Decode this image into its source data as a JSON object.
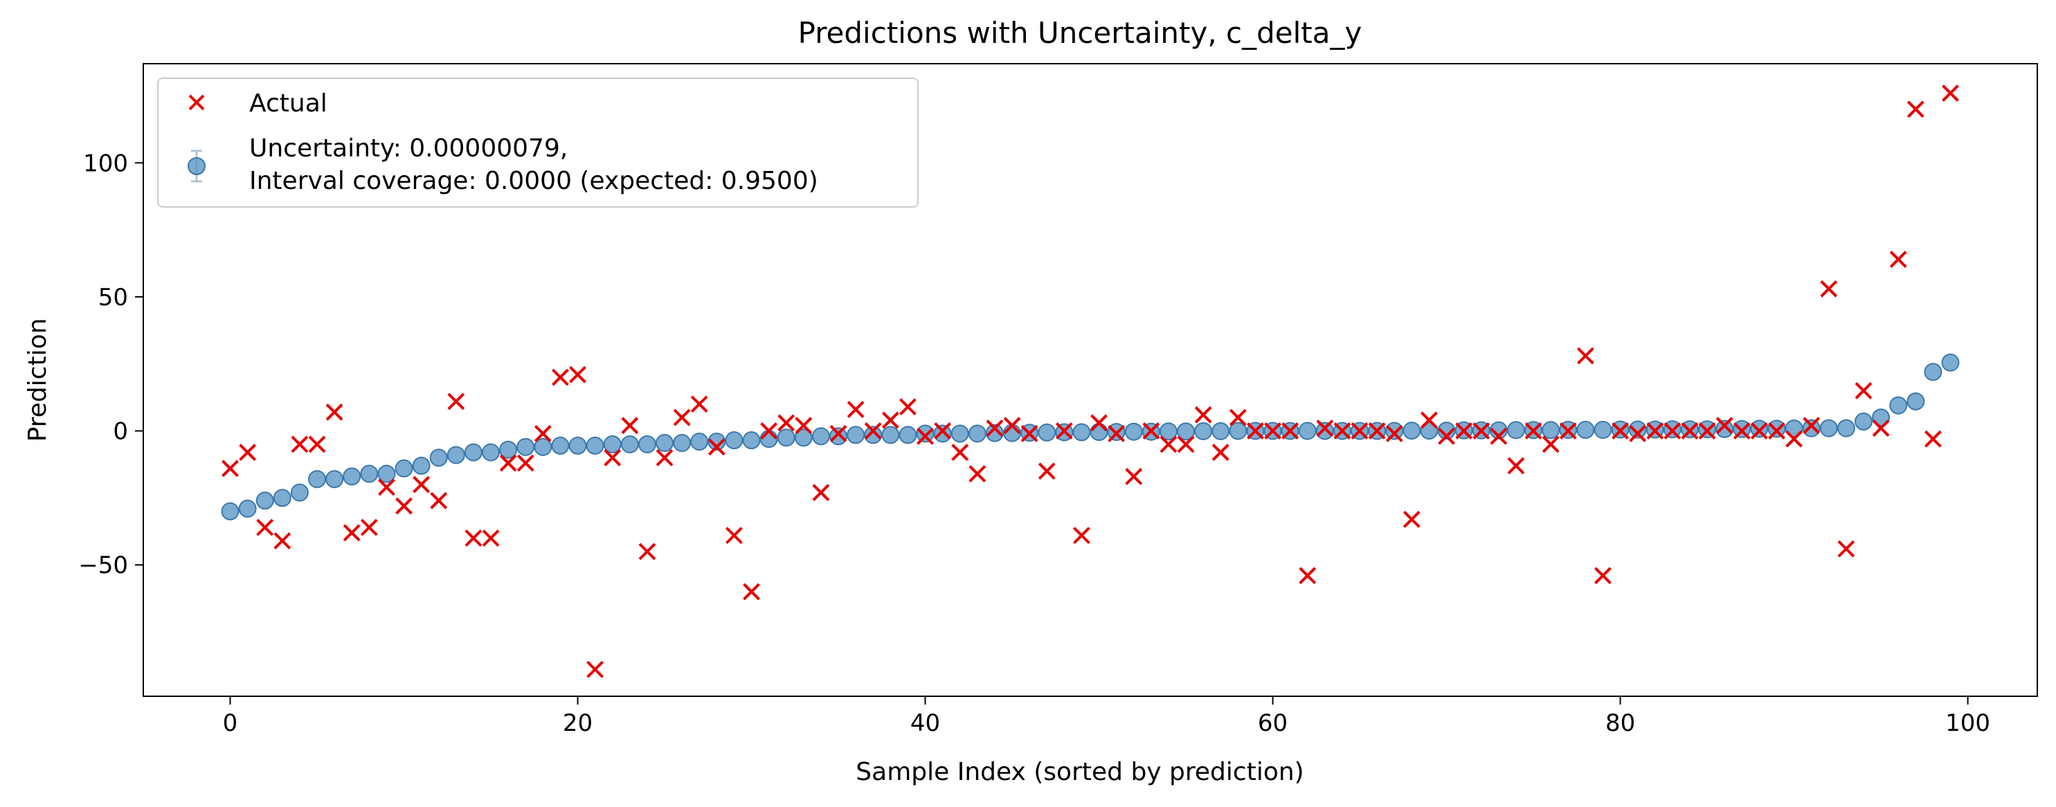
{
  "chart_data": {
    "type": "scatter",
    "title": "Predictions with Uncertainty, c_delta_y",
    "xlabel": "Sample Index (sorted by prediction)",
    "ylabel": "Prediction",
    "xlim": [
      -5,
      104
    ],
    "ylim": [
      -99,
      137
    ],
    "xticks": [
      0,
      20,
      40,
      60,
      80,
      100
    ],
    "yticks": [
      -50,
      0,
      50,
      100
    ],
    "grid": false,
    "legend_position": "top-left",
    "legend": {
      "actual_label": "Actual",
      "prediction_label_line1": "Uncertainty: 0.00000079,",
      "prediction_label_line2": "Interval coverage: 0.0000 (expected: 0.9500)"
    },
    "colors": {
      "actual": "#e60000",
      "prediction": "#5b97c6",
      "prediction_edge": "#3c78ab"
    },
    "series": [
      {
        "name": "Actual",
        "marker": "x",
        "x": [
          0,
          1,
          2,
          3,
          4,
          5,
          6,
          7,
          8,
          9,
          10,
          11,
          12,
          13,
          14,
          15,
          16,
          17,
          18,
          19,
          20,
          21,
          22,
          23,
          24,
          25,
          26,
          27,
          28,
          29,
          30,
          31,
          32,
          33,
          34,
          35,
          36,
          37,
          38,
          39,
          40,
          41,
          42,
          43,
          44,
          45,
          46,
          47,
          48,
          49,
          50,
          51,
          52,
          53,
          54,
          55,
          56,
          57,
          58,
          59,
          60,
          61,
          62,
          63,
          64,
          65,
          66,
          67,
          68,
          69,
          70,
          71,
          72,
          73,
          74,
          75,
          76,
          77,
          78,
          79,
          80,
          81,
          82,
          83,
          84,
          85,
          86,
          87,
          88,
          89,
          90,
          91,
          92,
          93,
          94,
          95,
          96,
          97,
          98,
          99
        ],
        "y": [
          -14,
          -8,
          -36,
          -41,
          -5,
          -5,
          7,
          -38,
          -36,
          -21,
          -28,
          -20,
          -26,
          11,
          -40,
          -40,
          -12,
          -12,
          -1,
          20,
          21,
          -89,
          -10,
          2,
          -45,
          -10,
          5,
          10,
          -6,
          -39,
          -60,
          0,
          3,
          2,
          -23,
          -1,
          8,
          0,
          4,
          9,
          -2,
          0,
          -8,
          -16,
          1,
          2,
          -1,
          -15,
          0,
          -39,
          3,
          -1,
          -17,
          0,
          -5,
          -5,
          6,
          -8,
          5,
          0,
          0,
          0,
          -54,
          1,
          0,
          0,
          0,
          -1,
          -33,
          4,
          -2,
          0,
          0,
          -2,
          -13,
          0,
          -5,
          0,
          28,
          -54,
          0,
          -1,
          0,
          0,
          0,
          0,
          2,
          0,
          0,
          0,
          -3,
          2,
          53,
          -44,
          15,
          1,
          64,
          120,
          -3,
          126
        ]
      },
      {
        "name": "Uncertainty: 0.00000079,\nInterval coverage: 0.0000 (expected: 0.9500)",
        "marker": "o",
        "x": [
          0,
          1,
          2,
          3,
          4,
          5,
          6,
          7,
          8,
          9,
          10,
          11,
          12,
          13,
          14,
          15,
          16,
          17,
          18,
          19,
          20,
          21,
          22,
          23,
          24,
          25,
          26,
          27,
          28,
          29,
          30,
          31,
          32,
          33,
          34,
          35,
          36,
          37,
          38,
          39,
          40,
          41,
          42,
          43,
          44,
          45,
          46,
          47,
          48,
          49,
          50,
          51,
          52,
          53,
          54,
          55,
          56,
          57,
          58,
          59,
          60,
          61,
          62,
          63,
          64,
          65,
          66,
          67,
          68,
          69,
          70,
          71,
          72,
          73,
          74,
          75,
          76,
          77,
          78,
          79,
          80,
          81,
          82,
          83,
          84,
          85,
          86,
          87,
          88,
          89,
          90,
          91,
          92,
          93,
          94,
          95,
          96,
          97,
          98,
          99
        ],
        "y": [
          -30,
          -29,
          -26,
          -25,
          -23,
          -18,
          -18,
          -17,
          -16,
          -16,
          -14,
          -13,
          -10,
          -9,
          -8,
          -8,
          -7,
          -6,
          -6,
          -5.5,
          -5.5,
          -5.5,
          -5,
          -5,
          -5,
          -4.5,
          -4.5,
          -4,
          -4,
          -3.5,
          -3.5,
          -3,
          -2.5,
          -2.5,
          -2,
          -2,
          -1.5,
          -1.5,
          -1.5,
          -1.5,
          -1,
          -1,
          -1,
          -1,
          -0.8,
          -0.8,
          -0.7,
          -0.6,
          -0.5,
          -0.5,
          -0.4,
          -0.4,
          -0.3,
          -0.3,
          -0.2,
          -0.2,
          -0.1,
          -0.1,
          0,
          0,
          0,
          0,
          0,
          0,
          0,
          0,
          0,
          0,
          0.1,
          0.1,
          0.1,
          0.2,
          0.2,
          0.2,
          0.3,
          0.3,
          0.3,
          0.4,
          0.4,
          0.4,
          0.5,
          0.5,
          0.5,
          0.6,
          0.6,
          0.6,
          0.7,
          0.7,
          0.8,
          0.8,
          0.9,
          1,
          1,
          1,
          3.5,
          5,
          9.5,
          11,
          22,
          25.5
        ]
      }
    ]
  }
}
